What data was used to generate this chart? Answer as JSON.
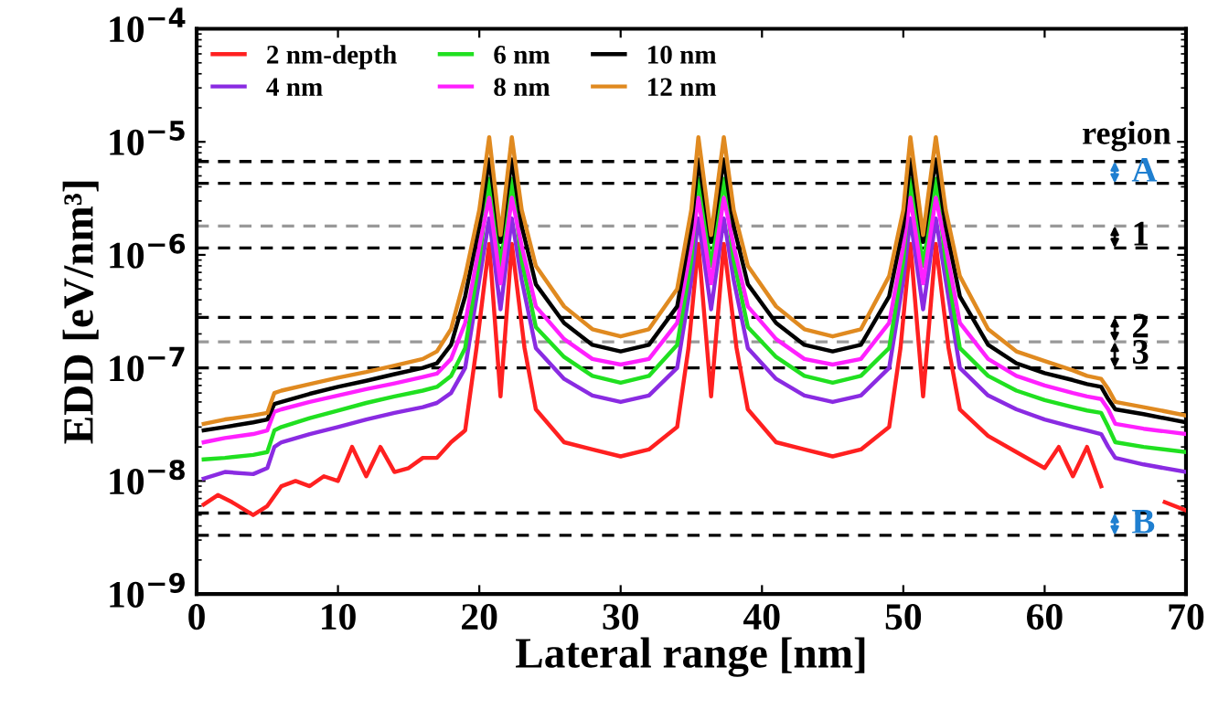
{
  "chart_data": {
    "type": "line",
    "xlabel": "Lateral range [nm]",
    "ylabel": "EDD [eV/nm³]",
    "log": "y",
    "xlim": [
      0,
      70
    ],
    "ylim": [
      1e-09,
      0.0001
    ],
    "xticks": [
      0,
      10,
      20,
      30,
      40,
      50,
      60,
      70
    ],
    "yticks": [
      {
        "value": 1e-09,
        "label": "10$^{−9}$"
      },
      {
        "value": 1e-08,
        "label": "10$^{−8}$"
      },
      {
        "value": 1e-07,
        "label": "10$^{−7}$"
      },
      {
        "value": 1e-06,
        "label": "10$^{−6}$"
      },
      {
        "value": 1e-05,
        "label": "10$^{−5}$"
      },
      {
        "value": 0.0001,
        "label": "10$^{−4}$"
      }
    ],
    "grid": false,
    "legend": "top left",
    "marker": "none",
    "line_style": "solid",
    "x": [
      0.5,
      2,
      4,
      5,
      5.5,
      6,
      8,
      10,
      12,
      14,
      16,
      17,
      18,
      19,
      20,
      20.7,
      21.5,
      22.3,
      23,
      24,
      26,
      28,
      30,
      32,
      34,
      35,
      35.5,
      36.4,
      37.3,
      38,
      39,
      41,
      43,
      45,
      47,
      49,
      50,
      50.5,
      51.4,
      52.3,
      53,
      54,
      56,
      58,
      60,
      62,
      63,
      64,
      64.5,
      65,
      67,
      70
    ],
    "series": [
      {
        "name": "2 nm-depth",
        "color": "#ff2020",
        "x": [
          0.5,
          1.5,
          2.5,
          4,
          5,
          6,
          7,
          8,
          9,
          10,
          11,
          12,
          13,
          14,
          15,
          16,
          17,
          18,
          19,
          19.8,
          20.7,
          21.5,
          22.3,
          23.2,
          24,
          26,
          28,
          30,
          32,
          34,
          34.8,
          35.5,
          36.4,
          37.3,
          38.2,
          39,
          41,
          43,
          45,
          47,
          49,
          49.8,
          50.5,
          51.4,
          52.3,
          53.2,
          54,
          56,
          58,
          60,
          61,
          62,
          63,
          64,
          65,
          68.5,
          70
        ],
        "values": [
          6.2e-09,
          7.5e-09,
          6.5e-09,
          5e-09,
          6e-09,
          9e-09,
          1e-08,
          9e-09,
          1.1e-08,
          1e-08,
          2e-08,
          1.1e-08,
          2e-08,
          1.2e-08,
          1.3e-08,
          1.6e-08,
          1.6e-08,
          2.2e-08,
          2.8e-08,
          1.5e-07,
          1.25e-06,
          5.6e-08,
          1.25e-06,
          1.5e-07,
          4.3e-08,
          2.2e-08,
          1.9e-08,
          1.65e-08,
          1.9e-08,
          3e-08,
          1.5e-07,
          1.25e-06,
          5.6e-08,
          1.25e-06,
          1.5e-07,
          4.3e-08,
          2.2e-08,
          1.9e-08,
          1.65e-08,
          1.9e-08,
          3e-08,
          1.5e-07,
          1.25e-06,
          5.6e-08,
          1.25e-06,
          1.5e-07,
          4.3e-08,
          2.5e-08,
          1.8e-08,
          1.3e-08,
          2e-08,
          1.1e-08,
          2e-08,
          9e-09,
          null,
          6.5e-09,
          5.5e-09
        ]
      },
      {
        "name": "4 nm",
        "color": "#8a2be2",
        "values": [
          1.05e-08,
          1.2e-08,
          1.15e-08,
          1.3e-08,
          2e-08,
          2.2e-08,
          2.6e-08,
          3e-08,
          3.5e-08,
          4e-08,
          4.5e-08,
          4.9e-08,
          6e-08,
          1e-07,
          6e-07,
          2.1e-06,
          3.3e-07,
          2.1e-06,
          6e-07,
          1.5e-07,
          8e-08,
          5.7e-08,
          5e-08,
          5.7e-08,
          1e-07,
          6e-07,
          2.1e-06,
          3.3e-07,
          2.1e-06,
          6e-07,
          1.5e-07,
          8e-08,
          5.7e-08,
          5e-08,
          5.7e-08,
          1e-07,
          6e-07,
          2.1e-06,
          3.3e-07,
          2.1e-06,
          6e-07,
          1e-07,
          5.7e-08,
          4.3e-08,
          3.5e-08,
          3e-08,
          2.8e-08,
          2.6e-08,
          2e-08,
          1.6e-08,
          1.4e-08,
          1.2e-08
        ]
      },
      {
        "name": "6 nm",
        "color": "#20e020",
        "values": [
          1.55e-08,
          1.6e-08,
          1.7e-08,
          1.8e-08,
          2.8e-08,
          3e-08,
          3.6e-08,
          4.2e-08,
          4.9e-08,
          5.6e-08,
          6.3e-08,
          6.8e-08,
          8.5e-08,
          1.5e-07,
          9e-07,
          4.7e-06,
          8e-07,
          4.7e-06,
          9e-07,
          2.3e-07,
          1.25e-07,
          8.5e-08,
          7.4e-08,
          8.5e-08,
          1.6e-07,
          9e-07,
          4.7e-06,
          8e-07,
          4.7e-06,
          9e-07,
          2.3e-07,
          1.25e-07,
          8.5e-08,
          7.4e-08,
          8.5e-08,
          1.5e-07,
          9e-07,
          4.7e-06,
          8e-07,
          4.7e-06,
          9e-07,
          1.5e-07,
          8.5e-08,
          6.3e-08,
          5.2e-08,
          4.5e-08,
          4.2e-08,
          4e-08,
          3e-08,
          2.2e-08,
          2e-08,
          1.8e-08
        ]
      },
      {
        "name": "8 nm",
        "color": "#ff20ff",
        "values": [
          2.2e-08,
          2.4e-08,
          2.6e-08,
          2.8e-08,
          4.1e-08,
          4.3e-08,
          5e-08,
          5.7e-08,
          6.5e-08,
          7.3e-08,
          8.3e-08,
          8.9e-08,
          1.2e-07,
          2.5e-07,
          1.2e-06,
          3.2e-06,
          5.6e-07,
          3.2e-06,
          1.2e-06,
          3.5e-07,
          1.8e-07,
          1.2e-07,
          1.07e-07,
          1.2e-07,
          2.5e-07,
          1.2e-06,
          3.2e-06,
          5.6e-07,
          3.2e-06,
          1.2e-06,
          3.5e-07,
          1.8e-07,
          1.2e-07,
          1.07e-07,
          1.2e-07,
          2.5e-07,
          1.2e-06,
          3.2e-06,
          5.6e-07,
          3.2e-06,
          1.2e-06,
          2.5e-07,
          1.2e-07,
          8.5e-08,
          7e-08,
          6e-08,
          5.6e-08,
          5.3e-08,
          4.3e-08,
          3.2e-08,
          2.9e-08,
          2.6e-08
        ]
      },
      {
        "name": "10 nm",
        "color": "#000000",
        "values": [
          2.8e-08,
          3e-08,
          3.3e-08,
          3.5e-08,
          4.8e-08,
          5e-08,
          5.9e-08,
          6.8e-08,
          7.7e-08,
          8.8e-08,
          1e-07,
          1.1e-07,
          1.6e-07,
          4.3e-07,
          1.8e-06,
          7e-06,
          1.3e-06,
          7e-06,
          1.8e-06,
          5.5e-07,
          2.5e-07,
          1.6e-07,
          1.4e-07,
          1.6e-07,
          3.5e-07,
          1.8e-06,
          7e-06,
          1.3e-06,
          7e-06,
          1.8e-06,
          5.5e-07,
          2.5e-07,
          1.6e-07,
          1.4e-07,
          1.6e-07,
          4.3e-07,
          1.8e-06,
          7e-06,
          1.3e-06,
          7e-06,
          1.8e-06,
          4.3e-07,
          1.6e-07,
          1.1e-07,
          9e-08,
          7.8e-08,
          7.2e-08,
          6.8e-08,
          5.3e-08,
          4.3e-08,
          3.9e-08,
          3.3e-08
        ]
      },
      {
        "name": "12 nm",
        "color": "#e08a20",
        "values": [
          3.2e-08,
          3.5e-08,
          3.8e-08,
          4e-08,
          6e-08,
          6.3e-08,
          7.2e-08,
          8.2e-08,
          9.2e-08,
          1.05e-07,
          1.2e-07,
          1.4e-07,
          2.2e-07,
          6.5e-07,
          2.5e-06,
          1.1e-05,
          1.5e-06,
          1.1e-05,
          2.5e-06,
          8e-07,
          3.5e-07,
          2.2e-07,
          1.9e-07,
          2.2e-07,
          5e-07,
          2.5e-06,
          1.1e-05,
          1.5e-06,
          1.1e-05,
          2.5e-06,
          8e-07,
          3.5e-07,
          2.2e-07,
          1.9e-07,
          2.2e-07,
          6.5e-07,
          2.5e-06,
          1.1e-05,
          1.5e-06,
          1.1e-05,
          2.5e-06,
          6.5e-07,
          2.2e-07,
          1.4e-07,
          1.15e-07,
          9.5e-08,
          8.5e-08,
          8e-08,
          6.5e-08,
          5e-08,
          4.5e-08,
          3.8e-08
        ]
      }
    ],
    "ref_lines": [
      {
        "axis": "y",
        "value": 6.7e-06,
        "color": "#000000",
        "line_style": "dashed"
      },
      {
        "axis": "y",
        "value": 4.3e-06,
        "color": "#000000",
        "line_style": "dashed"
      },
      {
        "axis": "y",
        "value": 1.8e-06,
        "color": "#999999",
        "line_style": "dashed"
      },
      {
        "axis": "y",
        "value": 1.15e-06,
        "color": "#000000",
        "line_style": "dashed"
      },
      {
        "axis": "y",
        "value": 2.8e-07,
        "color": "#000000",
        "line_style": "dashed"
      },
      {
        "axis": "y",
        "value": 1.7e-07,
        "color": "#999999",
        "line_style": "dashed"
      },
      {
        "axis": "y",
        "value": 1e-07,
        "color": "#000000",
        "line_style": "dashed"
      },
      {
        "axis": "y",
        "value": 5.2e-09,
        "color": "#000000",
        "line_style": "dashed"
      },
      {
        "axis": "y",
        "value": 3.3e-09,
        "color": "#000000",
        "line_style": "dashed"
      }
    ],
    "annotations": [
      "region",
      "A",
      "1",
      "2",
      "3",
      "B"
    ]
  }
}
